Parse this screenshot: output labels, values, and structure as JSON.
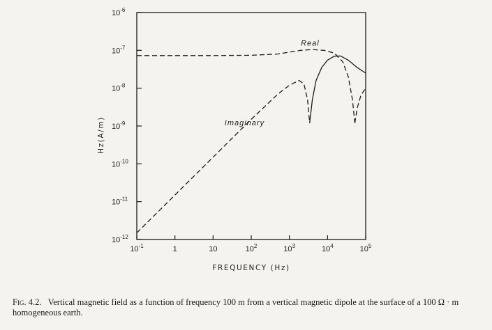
{
  "chart_data": {
    "type": "line",
    "x_scale": "log",
    "y_scale": "log",
    "xlim": [
      0.1,
      100000
    ],
    "ylim": [
      1e-12,
      1e-06
    ],
    "xlabel": "FREQUENCY (Hz)",
    "ylabel": "Hz(A/m)",
    "x_ticks": [
      {
        "value": 0.1,
        "base": "10",
        "exp": "-1"
      },
      {
        "value": 1,
        "base": "1",
        "exp": ""
      },
      {
        "value": 10,
        "base": "10",
        "exp": ""
      },
      {
        "value": 100,
        "base": "10",
        "exp": "2"
      },
      {
        "value": 1000,
        "base": "10",
        "exp": "3"
      },
      {
        "value": 10000,
        "base": "10",
        "exp": "4"
      },
      {
        "value": 100000,
        "base": "10",
        "exp": "5"
      }
    ],
    "y_ticks": [
      {
        "value": 1e-12,
        "base": "10",
        "exp": "-12"
      },
      {
        "value": 1e-11,
        "base": "10",
        "exp": "-11"
      },
      {
        "value": 1e-10,
        "base": "10",
        "exp": "-10"
      },
      {
        "value": 1e-09,
        "base": "10",
        "exp": "-9"
      },
      {
        "value": 1e-08,
        "base": "10",
        "exp": "-8"
      },
      {
        "value": 1e-07,
        "base": "10",
        "exp": "-7"
      },
      {
        "value": 1e-06,
        "base": "10",
        "exp": "-6"
      }
    ],
    "grid": false,
    "legend": "none",
    "series": [
      {
        "name": "Real",
        "style": "dashed",
        "segments": [
          [
            [
              0.1,
              7.3e-08
            ],
            [
              1,
              7.3e-08
            ],
            [
              10,
              7.3e-08
            ],
            [
              100,
              7.4e-08
            ],
            [
              500,
              8e-08
            ],
            [
              1000,
              9e-08
            ],
            [
              2000,
              1e-07
            ],
            [
              4000,
              1.05e-07
            ],
            [
              8000,
              1e-07
            ],
            [
              15000,
              8.5e-08
            ],
            [
              25000,
              5e-08
            ],
            [
              35000,
              2e-08
            ],
            [
              45000,
              5e-09
            ],
            [
              52000,
              1.2e-09
            ]
          ],
          [
            [
              52000,
              1.2e-09
            ],
            [
              60000,
              3e-09
            ],
            [
              75000,
              6.5e-09
            ],
            [
              100000,
              1e-08
            ]
          ]
        ]
      },
      {
        "name": "Imaginary",
        "style": "dashed",
        "segments": [
          [
            [
              0.1,
              1.5e-12
            ],
            [
              1,
              1.5e-11
            ],
            [
              10,
              1.5e-10
            ],
            [
              100,
              1.5e-09
            ],
            [
              500,
              7e-09
            ],
            [
              1000,
              1.2e-08
            ],
            [
              1800,
              1.6e-08
            ],
            [
              2400,
              1.3e-08
            ],
            [
              3000,
              5e-09
            ],
            [
              3400,
              1.2e-09
            ]
          ]
        ]
      },
      {
        "name": "Imaginary",
        "style": "solid",
        "segments": [
          [
            [
              3400,
              1.2e-09
            ],
            [
              4000,
              5e-09
            ],
            [
              5000,
              1.6e-08
            ],
            [
              7000,
              3.5e-08
            ],
            [
              10000,
              5.5e-08
            ],
            [
              15000,
              7e-08
            ],
            [
              22000,
              7.1e-08
            ],
            [
              35000,
              5.5e-08
            ],
            [
              60000,
              3.5e-08
            ],
            [
              100000,
              2.5e-08
            ]
          ]
        ]
      }
    ],
    "annotations": [
      {
        "text": "Real",
        "x": 2000,
        "y": 1.35e-07
      },
      {
        "text": "Imaginary",
        "x": 20,
        "y": 1.05e-09
      }
    ]
  },
  "caption": {
    "fig_label": "Fig. 4.2.",
    "text": "Vertical magnetic field as a function of frequency 100 m from a vertical magnetic dipole at the surface of a 100 Ω · m homogeneous earth."
  }
}
